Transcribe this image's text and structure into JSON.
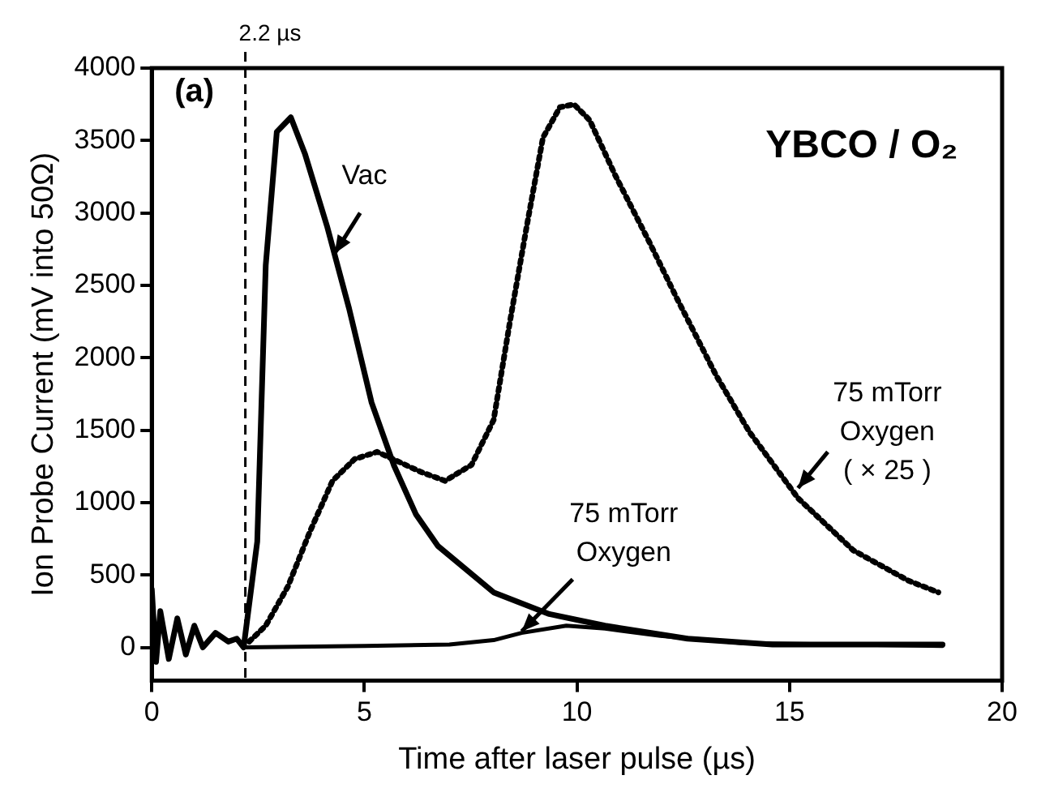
{
  "chart_data": {
    "type": "line",
    "xlabel": "Time after laser pulse (µs)",
    "ylabel": "Ion Probe Current (mV into 50Ω)",
    "xlim": [
      0,
      20
    ],
    "xticks": [
      0,
      5,
      10,
      15,
      20
    ],
    "ylim": [
      -230,
      4000
    ],
    "yticks": [
      0,
      500,
      1000,
      1500,
      2000,
      2500,
      3000,
      3500,
      4000
    ],
    "grid": false,
    "legend": false,
    "marker": "none",
    "annotations": [
      "(a)",
      "YBCO / O₂"
    ],
    "ref_lines": [
      {
        "axis": "x",
        "value": 2.2,
        "label": "2.2 µs",
        "line_style": "dashed",
        "color": "#000000"
      }
    ],
    "series": [
      {
        "name": "Vac",
        "color": "#000000",
        "line_style": "solid",
        "x": [
          0,
          0.1,
          0.2,
          0.4,
          0.6,
          0.8,
          1.0,
          1.2,
          1.5,
          1.8,
          2.0,
          2.16,
          2.48,
          2.68,
          2.94,
          3.27,
          3.6,
          4.12,
          4.64,
          5.17,
          5.69,
          6.21,
          6.73,
          8.04,
          9.35,
          10.66,
          12.6,
          14.6,
          18.6
        ],
        "values": [
          400,
          -100,
          250,
          -80,
          200,
          -50,
          150,
          0,
          100,
          40,
          60,
          0,
          730,
          2640,
          3560,
          3660,
          3410,
          2910,
          2340,
          1690,
          1260,
          920,
          700,
          380,
          230,
          150,
          60,
          20,
          20
        ]
      },
      {
        "name": "75 mTorr Oxygen ( × 25 )",
        "color": "#000000",
        "line_style": "dotted",
        "x": [
          2.29,
          2.68,
          3.2,
          3.72,
          4.25,
          4.77,
          5.3,
          5.82,
          6.34,
          6.9,
          7.52,
          8.04,
          8.43,
          8.82,
          9.2,
          9.6,
          9.93,
          10.3,
          10.9,
          11.7,
          12.35,
          13.27,
          14.05,
          15.2,
          16.5,
          17.8,
          18.5
        ],
        "values": [
          40,
          150,
          420,
          800,
          1150,
          1300,
          1350,
          1280,
          1210,
          1150,
          1260,
          1570,
          2260,
          2910,
          3520,
          3730,
          3750,
          3640,
          3260,
          2800,
          2410,
          1880,
          1490,
          1030,
          670,
          460,
          380
        ]
      },
      {
        "name": "75 mTorr Oxygen",
        "color": "#000000",
        "line_style": "solid",
        "x": [
          2.2,
          5,
          7,
          8.04,
          8.7,
          9.75,
          10.66,
          11.96,
          13.9,
          18.6
        ],
        "values": [
          0,
          10,
          20,
          50,
          100,
          150,
          130,
          80,
          30,
          10
        ]
      }
    ]
  }
}
